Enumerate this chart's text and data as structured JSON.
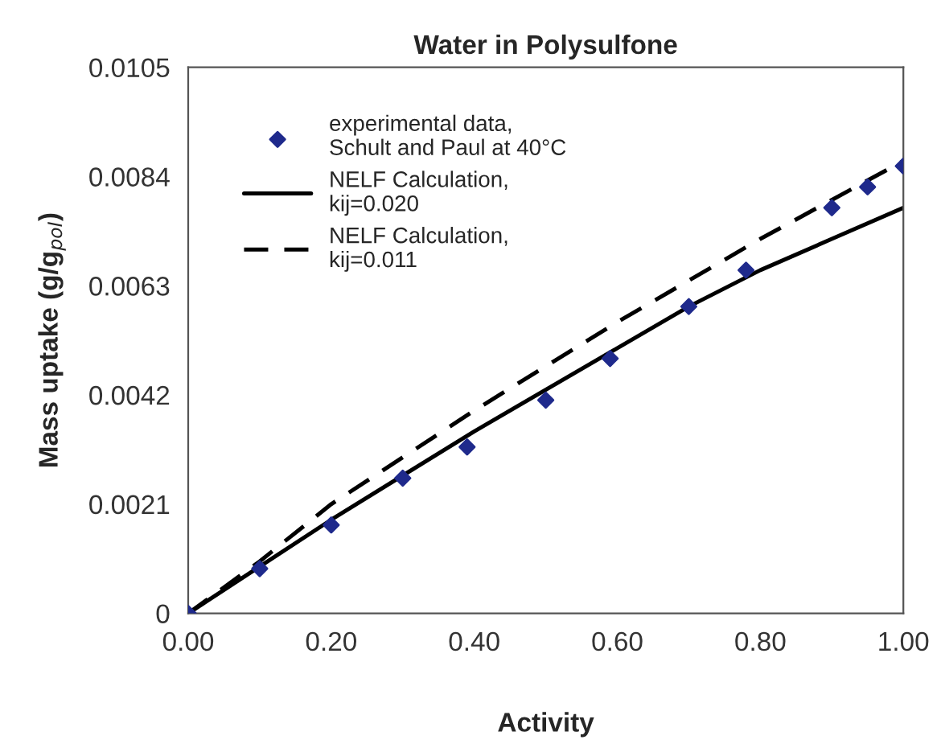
{
  "chart_data": {
    "type": "line",
    "title": "Water in Polysulfone",
    "xlabel": "Activity",
    "ylabel": "Mass uptake (g/g$_{pol}$)",
    "xlim": [
      0,
      1
    ],
    "ylim": [
      0,
      0.0105
    ],
    "xticks": [
      {
        "value": 0,
        "label": "0.00"
      },
      {
        "value": 0.2,
        "label": "0.20"
      },
      {
        "value": 0.4,
        "label": "0.40"
      },
      {
        "value": 0.6,
        "label": "0.60"
      },
      {
        "value": 0.8,
        "label": "0.80"
      },
      {
        "value": 1,
        "label": "1.00"
      }
    ],
    "yticks": [
      0,
      0.0021,
      0.0042,
      0.0063,
      0.0084,
      0.0105
    ],
    "grid": false,
    "legend": "top left",
    "series": [
      {
        "name": "experimental data,\nSchult and Paul at 40°C",
        "type": "scatter",
        "marker": "diamond",
        "color": "#1f2a8c",
        "x": [
          0,
          0.1,
          0.2,
          0.3,
          0.39,
          0.5,
          0.59,
          0.7,
          0.78,
          0.9,
          0.95,
          1.0
        ],
        "values": [
          0,
          0.00086,
          0.0017,
          0.0026,
          0.0032,
          0.0041,
          0.0049,
          0.0059,
          0.0066,
          0.0078,
          0.0082,
          0.0086
        ]
      },
      {
        "name": "NELF Calculation,\nkij=0.020",
        "line_style": "solid",
        "color": "#000000",
        "x": [
          0,
          0.1,
          0.2,
          0.4,
          0.6,
          0.7,
          0.8,
          0.9,
          1.0
        ],
        "values": [
          0,
          0.0009,
          0.0018,
          0.0035,
          0.0051,
          0.0059,
          0.0066,
          0.0072,
          0.0078
        ]
      },
      {
        "name": "NELF Calculation,\nkij=0.011",
        "line_style": "dashed",
        "color": "#000000",
        "x": [
          0,
          0.1,
          0.2,
          0.4,
          0.6,
          0.8,
          1.0
        ],
        "values": [
          0,
          0.001,
          0.0021,
          0.0039,
          0.0056,
          0.0072,
          0.0087
        ]
      }
    ]
  }
}
